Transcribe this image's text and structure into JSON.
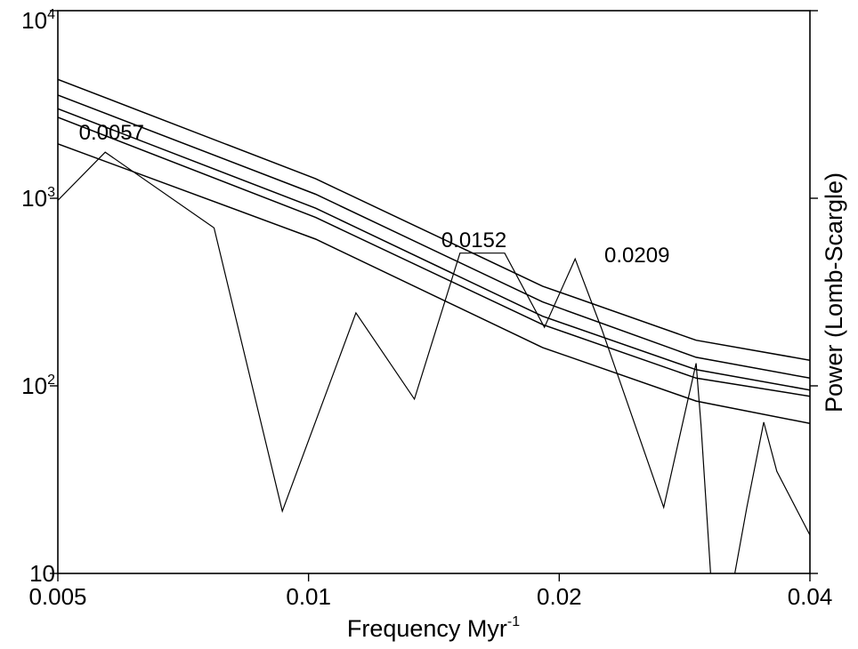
{
  "chart_data": {
    "type": "line",
    "title": "",
    "xlabel": "Frequency Myr",
    "xlabel_superscript": "-1",
    "ylabel": "Power (Lomb-Scargle)",
    "x_scale": "log",
    "y_scale": "log",
    "xlim": [
      0.005,
      0.04
    ],
    "ylim": [
      10,
      10000
    ],
    "grid": false,
    "x_ticks": [
      {
        "value": 0.005,
        "label": "0.005"
      },
      {
        "value": 0.01,
        "label": "0.01"
      },
      {
        "value": 0.02,
        "label": "0.02"
      },
      {
        "value": 0.04,
        "label": "0.04"
      }
    ],
    "y_ticks": [
      {
        "value": 10,
        "base": "10",
        "exp": ""
      },
      {
        "value": 100,
        "base": "10",
        "exp": "2"
      },
      {
        "value": 1000,
        "base": "10",
        "exp": "3"
      },
      {
        "value": 10000,
        "base": "10",
        "exp": "4"
      }
    ],
    "series": [
      {
        "kind": "spectrum",
        "x": [
          0.005,
          0.0057,
          0.0077,
          0.0093,
          0.0114,
          0.0134,
          0.0152,
          0.0172,
          0.0192,
          0.0209,
          0.0225,
          0.0237,
          0.0267,
          0.0292,
          0.0296,
          0.0308,
          0.0315,
          0.0325,
          0.0336,
          0.0352,
          0.0365,
          0.04
        ],
        "y": [
          975,
          1760,
          695,
          21.5,
          245,
          85,
          510,
          510,
          205,
          475,
          200,
          103,
          22.5,
          132,
          62,
          4,
          4,
          10,
          22.5,
          64,
          35,
          16
        ]
      },
      {
        "kind": "significance",
        "x": [
          0.005,
          0.0102,
          0.0191,
          0.0292,
          0.04
        ],
        "y": [
          4300,
          1270,
          340,
          175,
          137
        ]
      },
      {
        "kind": "significance",
        "x": [
          0.005,
          0.0102,
          0.0191,
          0.0292,
          0.04
        ],
        "y": [
          3550,
          1050,
          280,
          142,
          110
        ]
      },
      {
        "kind": "significance",
        "x": [
          0.005,
          0.0102,
          0.0191,
          0.0292,
          0.04
        ],
        "y": [
          3000,
          885,
          235,
          122,
          95
        ]
      },
      {
        "kind": "significance",
        "x": [
          0.005,
          0.0102,
          0.0191,
          0.0292,
          0.04
        ],
        "y": [
          2700,
          790,
          212,
          110,
          88
        ]
      },
      {
        "kind": "significance",
        "x": [
          0.005,
          0.0102,
          0.0191,
          0.0292,
          0.04
        ],
        "y": [
          1950,
          605,
          160,
          83,
          63
        ]
      }
    ],
    "annotations": [
      {
        "text": "0.0057",
        "x": 0.0058,
        "y": 2050,
        "anchor": "middle"
      },
      {
        "text": "0.0152",
        "x": 0.0158,
        "y": 550,
        "anchor": "middle"
      },
      {
        "text": "0.0209",
        "x": 0.0248,
        "y": 455,
        "anchor": "middle"
      }
    ]
  }
}
